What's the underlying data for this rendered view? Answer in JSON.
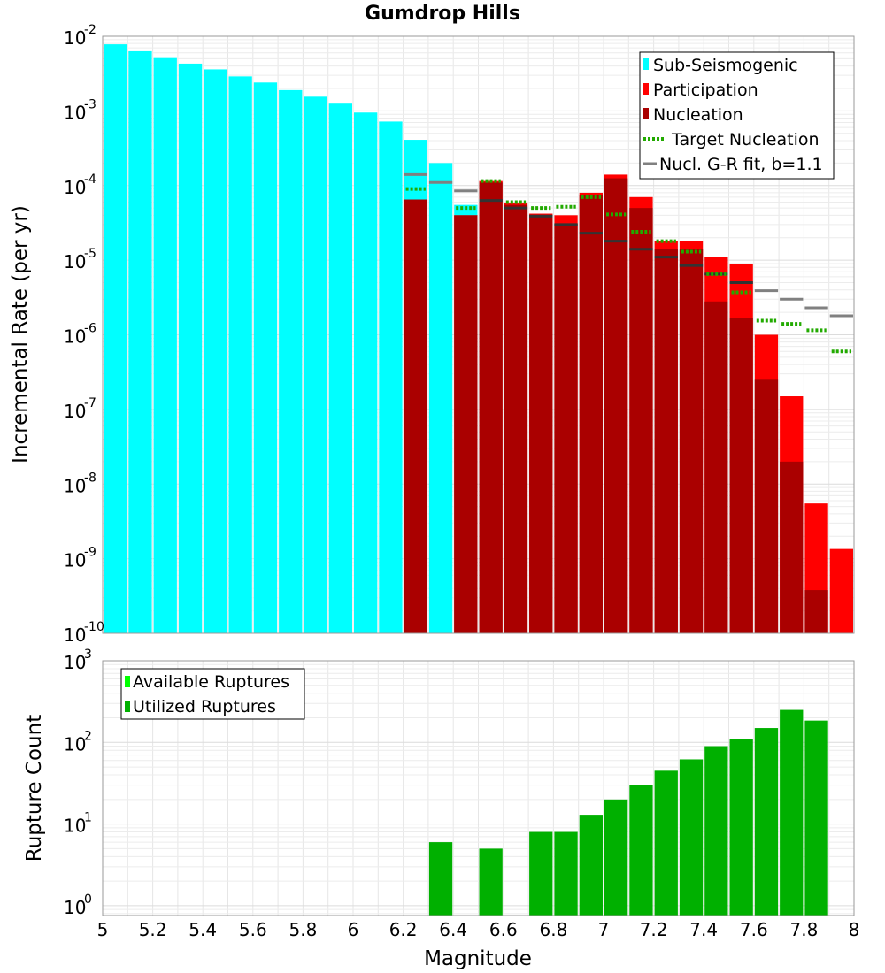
{
  "chart_data": [
    {
      "type": "bar",
      "title": "Gumdrop Hills",
      "xlabel": "",
      "ylabel": "Incremental Rate (per yr)",
      "xlim": [
        5,
        8
      ],
      "ylim_log10": [
        -10,
        -2
      ],
      "y_tick_exponents": [
        "-10",
        "-9",
        "-8",
        "-7",
        "-6",
        "-5",
        "-4",
        "-3",
        "-2"
      ],
      "bar_width": 0.1,
      "colors": {
        "sub": "#00ffff",
        "participation": "#ff0000",
        "nucleation": "#aa0000",
        "target": "#22aa00",
        "fit": "#808080"
      },
      "legend": {
        "sub": "Sub-Seismogenic",
        "participation": "Participation",
        "nucleation": "Nucleation",
        "target": "Target Nucleation",
        "fit": "Nucl. G-R fit, b=1.1"
      },
      "sub_seismogenic": {
        "x": [
          5.05,
          5.15,
          5.25,
          5.35,
          5.45,
          5.55,
          5.65,
          5.75,
          5.85,
          5.95,
          6.05,
          6.15,
          6.25,
          6.35,
          6.45
        ],
        "values": [
          0.0078,
          0.0063,
          0.0051,
          0.0043,
          0.0036,
          0.0029,
          0.0024,
          0.0019,
          0.00155,
          0.00125,
          0.00095,
          0.00072,
          0.00041,
          0.0002,
          5.5e-05
        ]
      },
      "participation": {
        "x": [
          6.25,
          6.35,
          6.45,
          6.55,
          6.65,
          6.75,
          6.85,
          6.95,
          7.05,
          7.15,
          7.25,
          7.35,
          7.45,
          7.55,
          7.65,
          7.75,
          7.85,
          7.95
        ],
        "values": [
          6.5e-05,
          0,
          4e-05,
          0.000115,
          5.8e-05,
          4.2e-05,
          4e-05,
          8e-05,
          0.00014,
          7e-05,
          1.8e-05,
          1.8e-05,
          1.1e-05,
          9e-06,
          1e-06,
          1.5e-07,
          5.5e-09,
          1.35e-09
        ]
      },
      "nucleation": {
        "x": [
          6.25,
          6.35,
          6.45,
          6.55,
          6.65,
          6.75,
          6.85,
          6.95,
          7.05,
          7.15,
          7.25,
          7.35,
          7.45,
          7.55,
          7.65,
          7.75,
          7.85,
          7.95
        ],
        "values": [
          6.5e-05,
          0,
          4e-05,
          0.00011,
          5.5e-05,
          4e-05,
          3.1e-05,
          7.5e-05,
          0.000125,
          5e-05,
          1.4e-05,
          1.4e-05,
          2.8e-06,
          1.7e-06,
          2.5e-07,
          2e-08,
          3.8e-10,
          0
        ]
      },
      "target_nucleation": {
        "x": [
          6.25,
          6.45,
          6.55,
          6.65,
          6.75,
          6.85,
          6.95,
          7.05,
          7.15,
          7.25,
          7.35,
          7.45,
          7.55,
          7.65,
          7.75,
          7.85,
          7.95
        ],
        "values": [
          9e-05,
          5e-05,
          0.000115,
          6e-05,
          5e-05,
          5.2e-05,
          7e-05,
          4.1e-05,
          2.4e-05,
          1.8e-05,
          1.3e-05,
          6.5e-06,
          3.7e-06,
          1.55e-06,
          1.4e-06,
          1.15e-06,
          6e-07
        ]
      },
      "gr_fit": {
        "x": [
          6.25,
          6.35,
          6.45,
          6.55,
          6.65,
          6.75,
          6.85,
          6.95,
          7.05,
          7.15,
          7.25,
          7.35,
          7.45,
          7.55,
          7.65,
          7.75,
          7.85,
          7.95
        ],
        "values": [
          0.00014,
          0.00011,
          8.5e-05,
          6.3e-05,
          5e-05,
          3.9e-05,
          3e-05,
          2.3e-05,
          1.8e-05,
          1.4e-05,
          1.1e-05,
          8.5e-06,
          6.5e-06,
          5e-06,
          3.9e-06,
          3e-06,
          2.3e-06,
          1.8e-06
        ]
      }
    },
    {
      "type": "bar",
      "title": "",
      "xlabel": "Magnitude",
      "ylabel": "Rupture Count",
      "xlim": [
        5,
        8
      ],
      "ylim_log10": [
        -0.12,
        3
      ],
      "y_tick_exponents": [
        "0",
        "1",
        "2",
        "3"
      ],
      "x_ticks": [
        "5",
        "5.2",
        "5.4",
        "5.6",
        "5.8",
        "6",
        "6.2",
        "6.4",
        "6.6",
        "6.8",
        "7",
        "7.2",
        "7.4",
        "7.6",
        "7.8",
        "8"
      ],
      "colors": {
        "available": "#00ff00",
        "utilized": "#00b000"
      },
      "legend": {
        "available": "Available Ruptures",
        "utilized": "Utilized Ruptures"
      },
      "utilized": {
        "x": [
          6.35,
          6.55,
          6.75,
          6.85,
          6.95,
          7.05,
          7.15,
          7.25,
          7.35,
          7.45,
          7.55,
          7.65,
          7.75,
          7.85
        ],
        "values": [
          6,
          5,
          8,
          8,
          13,
          20,
          30,
          45,
          62,
          90,
          110,
          150,
          250,
          185
        ]
      }
    }
  ]
}
